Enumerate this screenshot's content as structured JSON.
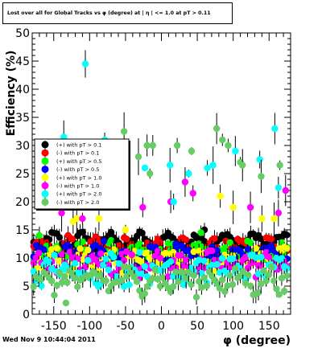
{
  "title": "Lost over all for Global Tracks vs φ (degree) at | η | <= 1.0 at pT > 0.11",
  "timestamp": "Wed Nov  9 10:44:04 2011",
  "chart_data": {
    "type": "scatter",
    "xlabel": "φ (degree)",
    "ylabel": "Efficiency (%)",
    "xlim": [
      -180,
      180
    ],
    "ylim": [
      0,
      50
    ],
    "xticks": [
      -150,
      -100,
      -50,
      0,
      50,
      100,
      150
    ],
    "xtick_labels": [
      "-150",
      "-100",
      "-50",
      "0",
      "50",
      "100",
      "150"
    ],
    "yticks": [
      0,
      5,
      10,
      15,
      20,
      25,
      30,
      35,
      40,
      45,
      50
    ],
    "ytick_labels": [
      "0",
      "5",
      "10",
      "15",
      "20",
      "25",
      "30",
      "35",
      "40",
      "45",
      "50"
    ],
    "grid": false,
    "legend_position": "top-left",
    "series": [
      {
        "name": "(+) with pT > 0.1",
        "color": "#000000",
        "base": 13,
        "amp": 1.2,
        "noise": 0.6,
        "outliers": [
          [
            -160,
            13.5
          ],
          [
            60,
            15
          ],
          [
            150,
            13
          ]
        ]
      },
      {
        "name": "(-) with pT > 0.1",
        "color": "#ff0000",
        "base": 12,
        "amp": 1.0,
        "noise": 0.8,
        "outliers": [
          [
            -130,
            14
          ],
          [
            30,
            13.5
          ],
          [
            90,
            13
          ]
        ]
      },
      {
        "name": "(+) with pT > 0.5",
        "color": "#00ff00",
        "base": 11,
        "amp": 1.0,
        "noise": 1.2,
        "outliers": [
          [
            -170,
            14
          ],
          [
            55,
            14.5
          ],
          [
            120,
            13
          ]
        ]
      },
      {
        "name": "(-) with pT > 0.5",
        "color": "#0000ff",
        "base": 10.5,
        "amp": 0.8,
        "noise": 1.2,
        "outliers": [
          [
            -80,
            13
          ],
          [
            20,
            12.5
          ]
        ]
      },
      {
        "name": "(+) with pT > 1.0",
        "color": "#ffff00",
        "base": 9.5,
        "amp": 1.0,
        "noise": 1.6,
        "outliers": [
          [
            -118,
            17
          ],
          [
            -123,
            16.5
          ],
          [
            -87,
            17
          ],
          [
            -50,
            15
          ],
          [
            82,
            21
          ],
          [
            100,
            19
          ],
          [
            140,
            17
          ],
          [
            157,
            17
          ]
        ]
      },
      {
        "name": "(-) with pT > 1.0",
        "color": "#ff00ff",
        "base": 9,
        "amp": 1.0,
        "noise": 1.6,
        "outliers": [
          [
            -139,
            18
          ],
          [
            -110,
            17
          ],
          [
            -26,
            19
          ],
          [
            13,
            20
          ],
          [
            33,
            23.5
          ],
          [
            44,
            21.5
          ],
          [
            124,
            19
          ],
          [
            163,
            18
          ],
          [
            173,
            22
          ]
        ]
      },
      {
        "name": "(+) with pT > 2.0",
        "color": "#00ffff",
        "base": 8,
        "amp": 1.2,
        "noise": 2.0,
        "outliers": [
          [
            -106,
            44.5
          ],
          [
            -136,
            31.5
          ],
          [
            -64,
            21.5
          ],
          [
            12,
            26.5
          ],
          [
            38,
            25
          ],
          [
            64,
            26
          ],
          [
            72,
            26.5
          ],
          [
            103,
            29
          ],
          [
            137,
            27.5
          ],
          [
            158,
            33
          ],
          [
            163,
            22.5
          ],
          [
            -79,
            31
          ],
          [
            -23,
            26
          ],
          [
            17,
            20
          ]
        ]
      },
      {
        "name": "(-) with pT > 2.0",
        "color": "#66cc66",
        "base": 6,
        "amp": 1.2,
        "noise": 1.8,
        "outliers": [
          [
            -52,
            32.5
          ],
          [
            -32,
            28
          ],
          [
            -20,
            30
          ],
          [
            -16,
            25
          ],
          [
            -12,
            30
          ],
          [
            22,
            30
          ],
          [
            42,
            29
          ],
          [
            77,
            33
          ],
          [
            85,
            31
          ],
          [
            93,
            30
          ],
          [
            110,
            27
          ],
          [
            113,
            26.5
          ],
          [
            139,
            24.5
          ],
          [
            165,
            26.5
          ],
          [
            -48,
            24.5
          ],
          [
            -133,
            2
          ]
        ]
      }
    ]
  }
}
